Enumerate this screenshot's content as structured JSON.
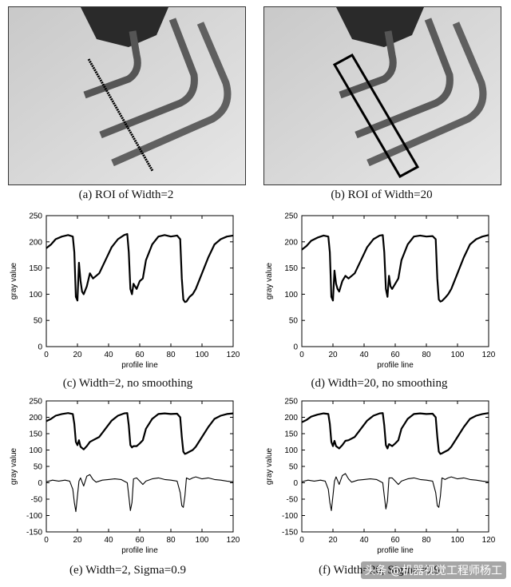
{
  "captions": {
    "a": "(a) ROI of Width=2",
    "b": "(b) ROI of Width=20",
    "c": "(c) Width=2, no smoothing",
    "d": "(d) Width=20, no smoothing",
    "e": "(e) Width=2, Sigma=0.9",
    "f": "(f) Width=20, Sigma=0.9"
  },
  "watermark": "头条 @机器视觉工程师杨工",
  "chart_data": [
    {
      "id": "c",
      "type": "line",
      "xlabel": "profile line",
      "ylabel": "gray value",
      "xlim": [
        0,
        120
      ],
      "ylim": [
        0,
        250
      ],
      "xticks": [
        0,
        20,
        40,
        60,
        80,
        100,
        120
      ],
      "yticks": [
        0,
        50,
        100,
        150,
        200,
        250
      ],
      "series": [
        {
          "x": [
            0,
            3,
            6,
            10,
            14,
            17,
            18,
            19,
            20,
            21,
            22,
            23,
            24,
            26,
            28,
            30,
            34,
            38,
            42,
            46,
            50,
            52,
            53,
            54,
            55,
            56,
            57,
            58,
            60,
            62,
            64,
            68,
            72,
            76,
            80,
            84,
            86,
            87,
            88,
            89,
            90,
            92,
            94,
            96,
            100,
            104,
            108,
            112,
            116,
            120
          ],
          "y": [
            188,
            195,
            205,
            210,
            213,
            210,
            180,
            95,
            88,
            160,
            125,
            105,
            100,
            115,
            140,
            130,
            140,
            165,
            190,
            205,
            213,
            215,
            180,
            110,
            100,
            120,
            115,
            110,
            125,
            130,
            165,
            195,
            210,
            213,
            210,
            212,
            205,
            130,
            90,
            85,
            86,
            95,
            100,
            110,
            140,
            170,
            195,
            205,
            210,
            212
          ]
        }
      ]
    },
    {
      "id": "d",
      "type": "line",
      "xlabel": "profile line",
      "ylabel": "gray value",
      "xlim": [
        0,
        120
      ],
      "ylim": [
        0,
        250
      ],
      "xticks": [
        0,
        20,
        40,
        60,
        80,
        100,
        120
      ],
      "yticks": [
        0,
        50,
        100,
        150,
        200,
        250
      ],
      "series": [
        {
          "x": [
            0,
            3,
            6,
            10,
            14,
            17,
            18,
            19,
            20,
            21,
            22,
            23,
            24,
            26,
            28,
            30,
            34,
            38,
            42,
            46,
            50,
            52,
            53,
            54,
            55,
            56,
            57,
            58,
            60,
            62,
            64,
            68,
            72,
            76,
            80,
            84,
            86,
            87,
            88,
            89,
            90,
            92,
            94,
            96,
            100,
            104,
            108,
            112,
            116,
            120
          ],
          "y": [
            185,
            192,
            202,
            208,
            212,
            210,
            180,
            95,
            88,
            145,
            120,
            110,
            105,
            125,
            135,
            130,
            140,
            165,
            190,
            205,
            212,
            213,
            180,
            110,
            95,
            135,
            115,
            110,
            120,
            130,
            165,
            195,
            210,
            212,
            210,
            211,
            205,
            130,
            90,
            86,
            87,
            93,
            100,
            110,
            140,
            170,
            195,
            205,
            210,
            213
          ]
        }
      ]
    },
    {
      "id": "e",
      "type": "line",
      "xlabel": "profile line",
      "ylabel": "gray value",
      "xlim": [
        0,
        120
      ],
      "ylim": [
        -150,
        250
      ],
      "xticks": [
        0,
        20,
        40,
        60,
        80,
        100,
        120
      ],
      "yticks": [
        -150,
        -100,
        -50,
        0,
        50,
        100,
        150,
        200,
        250
      ],
      "series": [
        {
          "x": [
            0,
            3,
            6,
            10,
            14,
            17,
            18,
            19,
            20,
            21,
            22,
            24,
            26,
            28,
            30,
            34,
            38,
            42,
            46,
            50,
            52,
            53,
            54,
            55,
            56,
            58,
            60,
            62,
            64,
            68,
            72,
            76,
            80,
            84,
            86,
            87,
            88,
            89,
            90,
            92,
            94,
            96,
            100,
            104,
            108,
            112,
            116,
            120
          ],
          "y": [
            188,
            195,
            205,
            210,
            213,
            210,
            180,
            125,
            115,
            130,
            110,
            102,
            112,
            125,
            130,
            140,
            165,
            190,
            205,
            212,
            213,
            175,
            115,
            108,
            112,
            112,
            120,
            130,
            165,
            195,
            210,
            212,
            210,
            211,
            200,
            140,
            95,
            88,
            90,
            95,
            100,
            110,
            140,
            170,
            195,
            205,
            210,
            212
          ]
        },
        {
          "x": [
            0,
            4,
            8,
            12,
            15,
            17,
            18,
            19,
            20,
            21,
            22,
            24,
            26,
            28,
            30,
            32,
            36,
            40,
            44,
            48,
            52,
            53,
            54,
            55,
            56,
            58,
            60,
            62,
            64,
            68,
            72,
            76,
            80,
            84,
            86,
            87,
            88,
            89,
            90,
            92,
            94,
            96,
            100,
            104,
            108,
            112,
            116,
            120
          ],
          "y": [
            3,
            8,
            5,
            8,
            5,
            -20,
            -60,
            -88,
            -40,
            5,
            15,
            -10,
            20,
            25,
            10,
            2,
            8,
            10,
            12,
            10,
            0,
            -40,
            -85,
            -60,
            12,
            15,
            5,
            -5,
            5,
            12,
            15,
            10,
            8,
            5,
            -30,
            -70,
            -75,
            -40,
            15,
            10,
            15,
            18,
            12,
            15,
            10,
            8,
            5,
            3
          ]
        }
      ]
    },
    {
      "id": "f",
      "type": "line",
      "xlabel": "profile line",
      "ylabel": "gray value",
      "xlim": [
        0,
        120
      ],
      "ylim": [
        -150,
        250
      ],
      "xticks": [
        0,
        20,
        40,
        60,
        80,
        100,
        120
      ],
      "yticks": [
        -150,
        -100,
        -50,
        0,
        50,
        100,
        150,
        200,
        250
      ],
      "series": [
        {
          "x": [
            0,
            3,
            6,
            10,
            14,
            17,
            18,
            19,
            20,
            21,
            22,
            24,
            26,
            28,
            30,
            34,
            38,
            42,
            46,
            50,
            52,
            53,
            54,
            55,
            56,
            58,
            60,
            62,
            64,
            68,
            72,
            76,
            80,
            84,
            86,
            87,
            88,
            89,
            90,
            92,
            94,
            96,
            100,
            104,
            108,
            112,
            116,
            120
          ],
          "y": [
            185,
            192,
            202,
            208,
            212,
            210,
            180,
            125,
            112,
            128,
            112,
            105,
            115,
            128,
            130,
            140,
            165,
            190,
            205,
            212,
            213,
            175,
            115,
            105,
            118,
            112,
            120,
            130,
            165,
            195,
            210,
            212,
            210,
            211,
            200,
            140,
            95,
            88,
            90,
            95,
            100,
            110,
            140,
            170,
            195,
            205,
            210,
            213
          ]
        },
        {
          "x": [
            0,
            4,
            8,
            12,
            15,
            17,
            18,
            19,
            20,
            21,
            22,
            24,
            26,
            28,
            30,
            32,
            36,
            40,
            44,
            48,
            52,
            53,
            54,
            55,
            56,
            58,
            60,
            62,
            64,
            68,
            72,
            76,
            80,
            84,
            86,
            87,
            88,
            89,
            90,
            92,
            94,
            96,
            100,
            104,
            108,
            112,
            116,
            120
          ],
          "y": [
            3,
            8,
            5,
            8,
            5,
            -20,
            -60,
            -85,
            -40,
            5,
            18,
            -5,
            22,
            28,
            12,
            2,
            8,
            10,
            12,
            10,
            0,
            -40,
            -80,
            -55,
            15,
            15,
            5,
            -5,
            5,
            12,
            15,
            10,
            8,
            5,
            -30,
            -70,
            -75,
            -40,
            15,
            10,
            15,
            18,
            12,
            15,
            10,
            8,
            5,
            3
          ]
        }
      ]
    }
  ]
}
